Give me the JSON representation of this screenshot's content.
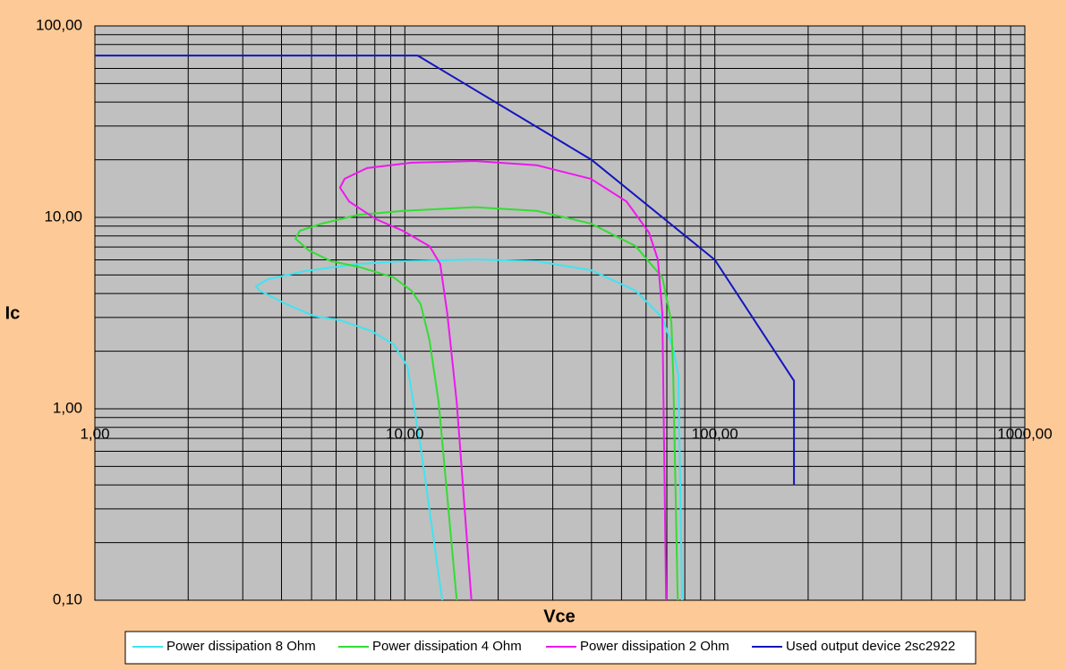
{
  "chart_data": {
    "type": "line",
    "x_label": "Vce",
    "y_label": "Ic",
    "xscale": "log",
    "yscale": "log",
    "grid": true,
    "legend": "bottom",
    "xlim": [
      1,
      1000
    ],
    "ylim": [
      0.1,
      100
    ],
    "xticks": [
      {
        "value": 1,
        "label": "1,00"
      },
      {
        "value": 10,
        "label": "10,00"
      },
      {
        "value": 100,
        "label": "100,00"
      },
      {
        "value": 1000,
        "label": "1000,00"
      }
    ],
    "yticks": [
      {
        "value": 0.1,
        "label": "0,10"
      },
      {
        "value": 1,
        "label": "1,00"
      },
      {
        "value": 10,
        "label": "10,00"
      },
      {
        "value": 100,
        "label": "100,00"
      }
    ],
    "series": [
      {
        "name": "Power dissipation 8 Ohm",
        "color": "#3ee4f2",
        "x": [
          13.2,
          11.25,
          10.2,
          9.2,
          7.8,
          6.18,
          5.07,
          4.15,
          3.4,
          3.31,
          3.63,
          4.74,
          7.06,
          9.85,
          16.8,
          26.7,
          39.8,
          55.5,
          67.7,
          73.4,
          76.3,
          78.4
        ],
        "values": [
          0.1,
          0.63,
          1.66,
          2.17,
          2.55,
          2.9,
          3.06,
          3.52,
          4.14,
          4.37,
          4.76,
          5.24,
          5.71,
          5.9,
          6.03,
          5.9,
          5.3,
          4.14,
          3.0,
          2.06,
          1.49,
          0.1
        ]
      },
      {
        "name": "Power dissipation 4 Ohm",
        "color": "#33dd33",
        "x": [
          14.7,
          12.85,
          12.0,
          11.25,
          10.5,
          9.2,
          7.06,
          5.79,
          4.9,
          4.44,
          4.58,
          5.41,
          7.06,
          9.85,
          16.8,
          26.7,
          39.8,
          55.5,
          67.7,
          72.4,
          73.4,
          75.9
        ],
        "values": [
          0.1,
          1.08,
          2.29,
          3.52,
          4.14,
          4.86,
          5.53,
          5.9,
          6.72,
          7.73,
          8.51,
          9.28,
          10.3,
          10.8,
          11.3,
          10.8,
          9.28,
          7.08,
          4.86,
          2.84,
          1.49,
          0.1
        ]
      },
      {
        "name": "Power dissipation 2 Ohm",
        "color": "#ee18ee",
        "x": [
          16.4,
          14.7,
          13.7,
          13.0,
          12.0,
          9.85,
          8.07,
          6.61,
          6.18,
          6.39,
          7.55,
          10.5,
          16.8,
          26.7,
          39.8,
          51.9,
          61.3,
          65.5,
          67.7,
          68.6,
          69.6
        ],
        "values": [
          0.1,
          1.08,
          3.16,
          5.71,
          7.08,
          8.51,
          9.79,
          12.1,
          14.3,
          15.9,
          18.1,
          19.3,
          19.7,
          18.7,
          15.9,
          12.1,
          8.33,
          6.03,
          3.16,
          0.63,
          0.1
        ]
      },
      {
        "name": "Used output device 2sc2922",
        "color": "#1414c0",
        "x": [
          1,
          11,
          40,
          100,
          180,
          180
        ],
        "values": [
          70,
          70,
          20,
          6,
          1.4,
          0.4
        ]
      }
    ]
  }
}
